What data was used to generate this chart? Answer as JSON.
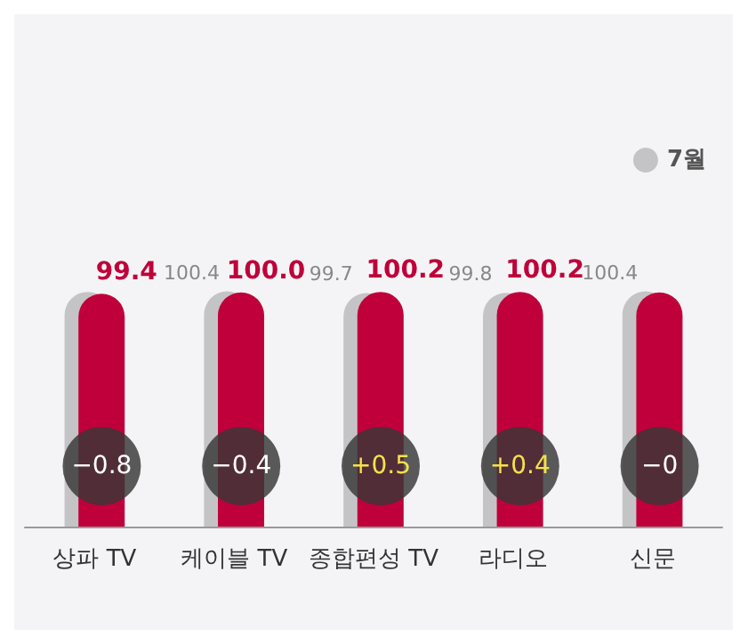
{
  "chart_data": {
    "type": "bar",
    "categories": [
      "상파 TV",
      "케이블 TV",
      "종합편성 TV",
      "라디오",
      "신문"
    ],
    "series": [
      {
        "name": "7월",
        "color": "#c4c4c6",
        "values": [
          100.2,
          100.4,
          99.7,
          99.8,
          100.4
        ],
        "value_labels": [
          null,
          "100.4",
          "99.7",
          "99.8",
          "100.4"
        ]
      },
      {
        "color": "#c0003a",
        "values": [
          99.4,
          100.0,
          100.2,
          100.2,
          100.0
        ],
        "value_labels": [
          "99.4",
          "100.0",
          "100.2",
          "100.2",
          null
        ]
      }
    ],
    "annotations": [
      "−0.8",
      "−0.4",
      "+0.5",
      "+0.4",
      "−0"
    ],
    "legend": "top right"
  }
}
